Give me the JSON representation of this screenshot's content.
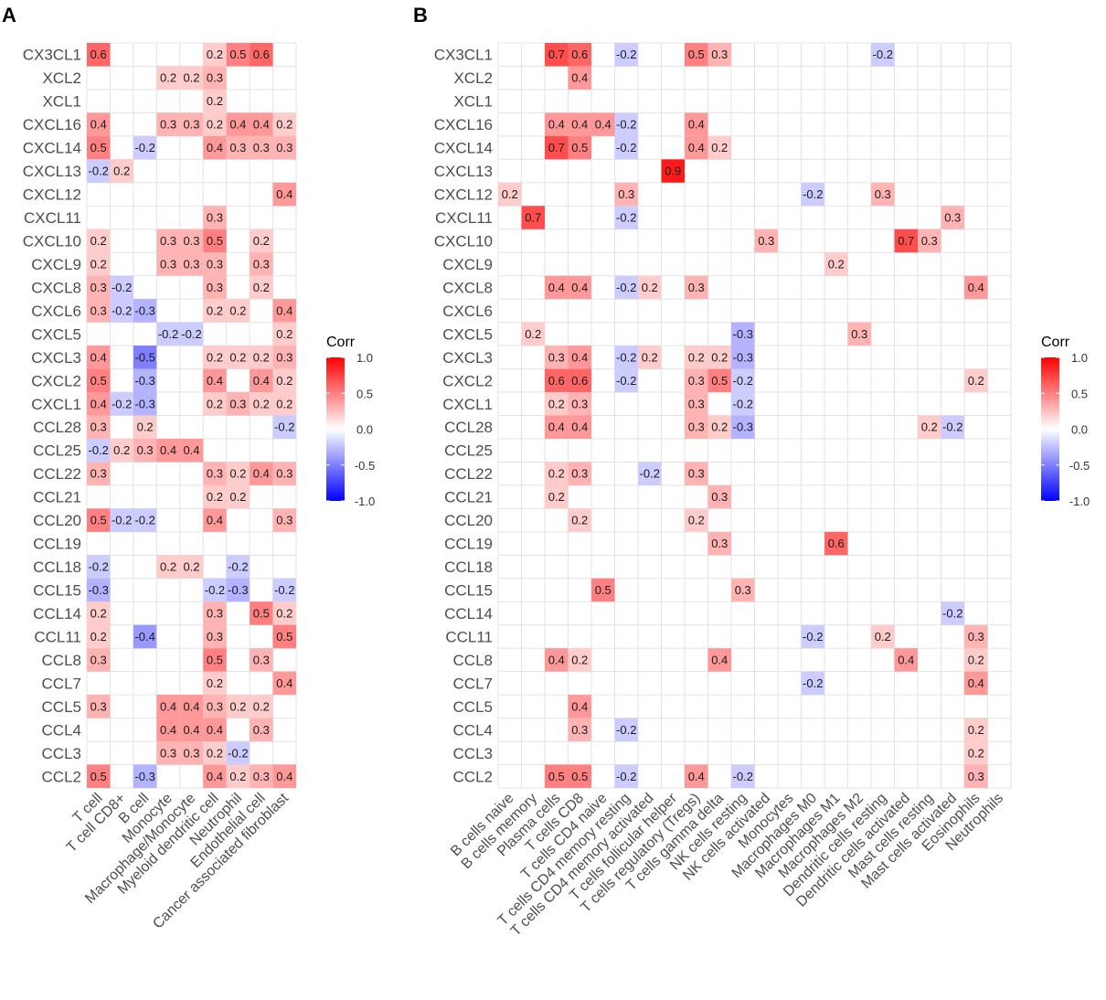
{
  "chart_data": [
    {
      "type": "heatmap",
      "panel": "A",
      "legend_title": "Corr",
      "legend_ticks": [
        "1.0",
        "0.5",
        "0.0",
        "-0.5",
        "-1.0"
      ],
      "color_scale": {
        "low": "#0000ff",
        "mid": "#ffffff",
        "high": "#ff0000",
        "range": [
          -1,
          1
        ]
      },
      "rows": [
        "CX3CL1",
        "XCL2",
        "XCL1",
        "CXCL16",
        "CXCL14",
        "CXCL13",
        "CXCL12",
        "CXCL11",
        "CXCL10",
        "CXCL9",
        "CXCL8",
        "CXCL6",
        "CXCL5",
        "CXCL3",
        "CXCL2",
        "CXCL1",
        "CCL28",
        "CCL25",
        "CCL22",
        "CCL21",
        "CCL20",
        "CCL19",
        "CCL18",
        "CCL15",
        "CCL14",
        "CCL11",
        "CCL8",
        "CCL7",
        "CCL5",
        "CCL4",
        "CCL3",
        "CCL2"
      ],
      "columns": [
        "T cell",
        "T cell CD8+",
        "B cell",
        "Monocyte",
        "Macrophage/Monocyte",
        "Myeloid dendritic cell",
        "Neutrophil",
        "Endothelial cell",
        "Cancer associated fibroblast"
      ],
      "values": [
        [
          0.6,
          null,
          null,
          null,
          null,
          0.2,
          0.5,
          0.6,
          null
        ],
        [
          null,
          null,
          null,
          0.2,
          0.2,
          0.3,
          null,
          null,
          null
        ],
        [
          null,
          null,
          null,
          null,
          null,
          0.2,
          null,
          null,
          null
        ],
        [
          0.4,
          null,
          null,
          0.3,
          0.3,
          0.2,
          0.4,
          0.4,
          0.2
        ],
        [
          0.5,
          null,
          -0.2,
          null,
          null,
          0.4,
          0.3,
          0.3,
          0.3
        ],
        [
          -0.2,
          0.2,
          null,
          null,
          null,
          null,
          null,
          null,
          null
        ],
        [
          null,
          null,
          null,
          null,
          null,
          null,
          null,
          null,
          0.4
        ],
        [
          null,
          null,
          null,
          null,
          null,
          0.3,
          null,
          null,
          null
        ],
        [
          0.2,
          null,
          null,
          0.3,
          0.3,
          0.5,
          null,
          0.2,
          null
        ],
        [
          0.2,
          null,
          null,
          0.3,
          0.3,
          0.3,
          null,
          0.3,
          null
        ],
        [
          0.3,
          -0.2,
          null,
          null,
          null,
          0.3,
          null,
          0.2,
          null
        ],
        [
          0.3,
          -0.2,
          -0.3,
          null,
          null,
          0.2,
          0.2,
          null,
          0.4
        ],
        [
          null,
          null,
          null,
          -0.2,
          -0.2,
          null,
          null,
          null,
          0.2
        ],
        [
          0.4,
          null,
          -0.5,
          null,
          null,
          0.2,
          0.2,
          0.2,
          0.3
        ],
        [
          0.5,
          null,
          -0.3,
          null,
          null,
          0.4,
          null,
          0.4,
          0.2
        ],
        [
          0.4,
          -0.2,
          -0.3,
          null,
          null,
          0.2,
          0.3,
          0.2,
          0.2
        ],
        [
          0.3,
          null,
          0.2,
          null,
          null,
          null,
          null,
          null,
          -0.2
        ],
        [
          -0.2,
          0.2,
          0.3,
          0.4,
          0.4,
          null,
          null,
          null,
          null
        ],
        [
          0.3,
          null,
          null,
          null,
          null,
          0.3,
          0.2,
          0.4,
          0.3
        ],
        [
          null,
          null,
          null,
          null,
          null,
          0.2,
          0.2,
          null,
          null
        ],
        [
          0.5,
          -0.2,
          -0.2,
          null,
          null,
          0.4,
          null,
          null,
          0.3
        ],
        [
          null,
          null,
          null,
          null,
          null,
          null,
          null,
          null,
          null
        ],
        [
          -0.2,
          null,
          null,
          0.2,
          0.2,
          null,
          -0.2,
          null,
          null
        ],
        [
          -0.3,
          null,
          null,
          null,
          null,
          -0.2,
          -0.3,
          null,
          -0.2
        ],
        [
          0.2,
          null,
          null,
          null,
          null,
          0.3,
          null,
          0.5,
          0.2
        ],
        [
          0.2,
          null,
          -0.4,
          null,
          null,
          0.3,
          null,
          null,
          0.5
        ],
        [
          0.3,
          null,
          null,
          null,
          null,
          0.5,
          null,
          0.3,
          null
        ],
        [
          null,
          null,
          null,
          null,
          null,
          0.2,
          null,
          null,
          0.4
        ],
        [
          0.3,
          null,
          null,
          0.4,
          0.4,
          0.3,
          0.2,
          0.2,
          null
        ],
        [
          null,
          null,
          null,
          0.4,
          0.4,
          0.4,
          null,
          0.3,
          null
        ],
        [
          null,
          null,
          null,
          0.3,
          0.3,
          0.2,
          -0.2,
          null,
          null
        ],
        [
          0.5,
          null,
          -0.3,
          null,
          null,
          0.4,
          0.2,
          0.3,
          0.4
        ]
      ]
    },
    {
      "type": "heatmap",
      "panel": "B",
      "legend_title": "Corr",
      "legend_ticks": [
        "1.0",
        "0.5",
        "0.0",
        "-0.5",
        "-1.0"
      ],
      "color_scale": {
        "low": "#0000ff",
        "mid": "#ffffff",
        "high": "#ff0000",
        "range": [
          -1,
          1
        ]
      },
      "rows": [
        "CX3CL1",
        "XCL2",
        "XCL1",
        "CXCL16",
        "CXCL14",
        "CXCL13",
        "CXCL12",
        "CXCL11",
        "CXCL10",
        "CXCL9",
        "CXCL8",
        "CXCL6",
        "CXCL5",
        "CXCL3",
        "CXCL2",
        "CXCL1",
        "CCL28",
        "CCL25",
        "CCL22",
        "CCL21",
        "CCL20",
        "CCL19",
        "CCL18",
        "CCL15",
        "CCL14",
        "CCL11",
        "CCL8",
        "CCL7",
        "CCL5",
        "CCL4",
        "CCL3",
        "CCL2"
      ],
      "columns": [
        "B cells naive",
        "B cells memory",
        "Plasma cells",
        "T cells CD8",
        "T cells CD4 naive",
        "T cells CD4 memory resting",
        "T cells CD4 memory activated",
        "T cells follicular helper",
        "T cells regulatory (Tregs)",
        "T cells gamma delta",
        "NK cells resting",
        "NK cells activated",
        "Monocytes",
        "Macrophages M0",
        "Macrophages M1",
        "Macrophages M2",
        "Dendritic cells resting",
        "Dendritic cells activated",
        "Mast cells resting",
        "Mast cells activated",
        "Eosinophils",
        "Neutrophils"
      ],
      "values": [
        [
          null,
          null,
          0.7,
          0.6,
          null,
          -0.2,
          null,
          null,
          0.5,
          0.3,
          null,
          null,
          null,
          null,
          null,
          null,
          -0.2,
          null,
          null,
          null,
          null,
          null
        ],
        [
          null,
          null,
          null,
          0.4,
          null,
          null,
          null,
          null,
          null,
          null,
          null,
          null,
          null,
          null,
          null,
          null,
          null,
          null,
          null,
          null,
          null,
          null
        ],
        [
          null,
          null,
          null,
          null,
          null,
          null,
          null,
          null,
          null,
          null,
          null,
          null,
          null,
          null,
          null,
          null,
          null,
          null,
          null,
          null,
          null,
          null
        ],
        [
          null,
          null,
          0.4,
          0.4,
          0.4,
          -0.2,
          null,
          null,
          0.4,
          null,
          null,
          null,
          null,
          null,
          null,
          null,
          null,
          null,
          null,
          null,
          null,
          null
        ],
        [
          null,
          null,
          0.7,
          0.5,
          null,
          -0.2,
          null,
          null,
          0.4,
          0.2,
          null,
          null,
          null,
          null,
          null,
          null,
          null,
          null,
          null,
          null,
          null,
          null
        ],
        [
          null,
          null,
          null,
          null,
          null,
          null,
          null,
          0.9,
          null,
          null,
          null,
          null,
          null,
          null,
          null,
          null,
          null,
          null,
          null,
          null,
          null,
          null
        ],
        [
          0.2,
          null,
          null,
          null,
          null,
          0.3,
          null,
          null,
          null,
          null,
          null,
          null,
          null,
          -0.2,
          null,
          null,
          0.3,
          null,
          null,
          null,
          null,
          null
        ],
        [
          null,
          0.7,
          null,
          null,
          null,
          -0.2,
          null,
          null,
          null,
          null,
          null,
          null,
          null,
          null,
          null,
          null,
          null,
          null,
          null,
          0.3,
          null,
          null
        ],
        [
          null,
          null,
          null,
          null,
          null,
          null,
          null,
          null,
          null,
          null,
          null,
          0.3,
          null,
          null,
          null,
          null,
          null,
          0.7,
          0.3,
          null,
          null,
          null
        ],
        [
          null,
          null,
          null,
          null,
          null,
          null,
          null,
          null,
          null,
          null,
          null,
          null,
          null,
          null,
          0.2,
          null,
          null,
          null,
          null,
          null,
          null,
          null
        ],
        [
          null,
          null,
          0.4,
          0.4,
          null,
          -0.2,
          0.2,
          null,
          0.3,
          null,
          null,
          null,
          null,
          null,
          null,
          null,
          null,
          null,
          null,
          null,
          0.4,
          null
        ],
        [
          null,
          null,
          null,
          null,
          null,
          null,
          null,
          null,
          null,
          null,
          null,
          null,
          null,
          null,
          null,
          null,
          null,
          null,
          null,
          null,
          null,
          null
        ],
        [
          null,
          0.2,
          null,
          null,
          null,
          null,
          null,
          null,
          null,
          null,
          -0.3,
          null,
          null,
          null,
          null,
          0.3,
          null,
          null,
          null,
          null,
          null,
          null
        ],
        [
          null,
          null,
          0.3,
          0.4,
          null,
          -0.2,
          0.2,
          null,
          0.2,
          0.2,
          -0.3,
          null,
          null,
          null,
          null,
          null,
          null,
          null,
          null,
          null,
          null,
          null
        ],
        [
          null,
          null,
          0.6,
          0.6,
          null,
          -0.2,
          null,
          null,
          0.3,
          0.5,
          -0.2,
          null,
          null,
          null,
          null,
          null,
          null,
          null,
          null,
          null,
          0.2,
          null
        ],
        [
          null,
          null,
          0.2,
          0.3,
          null,
          null,
          null,
          null,
          0.3,
          null,
          -0.2,
          null,
          null,
          null,
          null,
          null,
          null,
          null,
          null,
          null,
          null,
          null
        ],
        [
          null,
          null,
          0.4,
          0.4,
          null,
          null,
          null,
          null,
          0.3,
          0.2,
          -0.3,
          null,
          null,
          null,
          null,
          null,
          null,
          null,
          0.2,
          -0.2,
          null,
          null
        ],
        [
          null,
          null,
          null,
          null,
          null,
          null,
          null,
          null,
          null,
          null,
          null,
          null,
          null,
          null,
          null,
          null,
          null,
          null,
          null,
          null,
          null,
          null
        ],
        [
          null,
          null,
          0.2,
          0.3,
          null,
          null,
          -0.2,
          null,
          0.3,
          null,
          null,
          null,
          null,
          null,
          null,
          null,
          null,
          null,
          null,
          null,
          null,
          null
        ],
        [
          null,
          null,
          0.2,
          null,
          null,
          null,
          null,
          null,
          null,
          0.3,
          null,
          null,
          null,
          null,
          null,
          null,
          null,
          null,
          null,
          null,
          null,
          null
        ],
        [
          null,
          null,
          null,
          0.2,
          null,
          null,
          null,
          null,
          0.2,
          null,
          null,
          null,
          null,
          null,
          null,
          null,
          null,
          null,
          null,
          null,
          null,
          null
        ],
        [
          null,
          null,
          null,
          null,
          null,
          null,
          null,
          null,
          null,
          0.3,
          null,
          null,
          null,
          null,
          0.6,
          null,
          null,
          null,
          null,
          null,
          null,
          null
        ],
        [
          null,
          null,
          null,
          null,
          null,
          null,
          null,
          null,
          null,
          null,
          null,
          null,
          null,
          null,
          null,
          null,
          null,
          null,
          null,
          null,
          null,
          null
        ],
        [
          null,
          null,
          null,
          null,
          0.5,
          null,
          null,
          null,
          null,
          null,
          0.3,
          null,
          null,
          null,
          null,
          null,
          null,
          null,
          null,
          null,
          null,
          null
        ],
        [
          null,
          null,
          null,
          null,
          null,
          null,
          null,
          null,
          null,
          null,
          null,
          null,
          null,
          null,
          null,
          null,
          null,
          null,
          null,
          -0.2,
          null,
          null
        ],
        [
          null,
          null,
          null,
          null,
          null,
          null,
          null,
          null,
          null,
          null,
          null,
          null,
          null,
          -0.2,
          null,
          null,
          0.2,
          null,
          null,
          null,
          0.3,
          null
        ],
        [
          null,
          null,
          0.4,
          0.2,
          null,
          null,
          null,
          null,
          null,
          0.4,
          null,
          null,
          null,
          null,
          null,
          null,
          null,
          0.4,
          null,
          null,
          0.2,
          null
        ],
        [
          null,
          null,
          null,
          null,
          null,
          null,
          null,
          null,
          null,
          null,
          null,
          null,
          null,
          -0.2,
          null,
          null,
          null,
          null,
          null,
          null,
          0.4,
          null
        ],
        [
          null,
          null,
          null,
          0.4,
          null,
          null,
          null,
          null,
          null,
          null,
          null,
          null,
          null,
          null,
          null,
          null,
          null,
          null,
          null,
          null,
          null,
          null
        ],
        [
          null,
          null,
          null,
          0.3,
          null,
          -0.2,
          null,
          null,
          null,
          null,
          null,
          null,
          null,
          null,
          null,
          null,
          null,
          null,
          null,
          null,
          0.2,
          null
        ],
        [
          null,
          null,
          null,
          null,
          null,
          null,
          null,
          null,
          null,
          null,
          null,
          null,
          null,
          null,
          null,
          null,
          null,
          null,
          null,
          null,
          0.2,
          null
        ],
        [
          null,
          null,
          0.5,
          0.5,
          null,
          -0.2,
          null,
          null,
          0.4,
          null,
          -0.2,
          null,
          null,
          null,
          null,
          null,
          null,
          null,
          null,
          null,
          0.3,
          null
        ]
      ]
    }
  ]
}
